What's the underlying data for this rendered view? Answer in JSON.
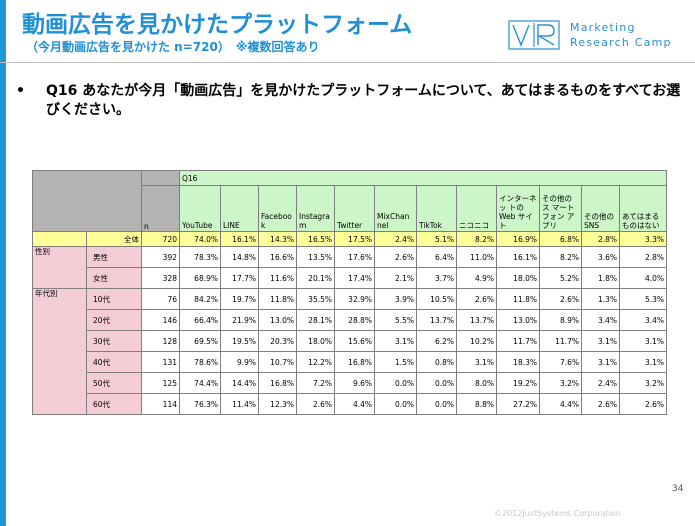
{
  "slide": {
    "title": "動画広告を見かけたプラットフォーム",
    "subtitle": "（今月動画広告を見かけた n=720）　※複数回答あり",
    "logo_text_line1": "Marketing",
    "logo_text_line2": "Research Camp",
    "logo_glyph": "VR",
    "bullet": "•",
    "question": "Q16 あなたが今月「動画広告」を見かけたプラットフォームについて、あてはまるものをすべてお選びください。",
    "page_number": "34",
    "copyright": "©2012JustSystems Corporation"
  },
  "table": {
    "q_label": "Q16",
    "n_label": "n",
    "columns": [
      "YouTube",
      "LINE",
      "Faceboo\nk",
      "Instagra\nm",
      "Twitter",
      "MixChan\nnel",
      "TikTok",
      "ニコニコ",
      "インターネッ\nトのWeb\nサイト",
      "その他のス\nマートフォン\nアプリ",
      "その他の\nSNS",
      "あてはまる\nものはない"
    ],
    "rows": [
      {
        "group": "",
        "label": "全体",
        "n": "720",
        "values": [
          "74.0%",
          "16.1%",
          "14.3%",
          "16.5%",
          "17.5%",
          "2.4%",
          "5.1%",
          "8.2%",
          "16.9%",
          "6.8%",
          "2.8%",
          "3.3%"
        ]
      },
      {
        "group": "性別",
        "label": "男性",
        "n": "392",
        "values": [
          "78.3%",
          "14.8%",
          "16.6%",
          "13.5%",
          "17.6%",
          "2.6%",
          "6.4%",
          "11.0%",
          "16.1%",
          "8.2%",
          "3.6%",
          "2.8%"
        ]
      },
      {
        "group": "",
        "label": "女性",
        "n": "328",
        "values": [
          "68.9%",
          "17.7%",
          "11.6%",
          "20.1%",
          "17.4%",
          "2.1%",
          "3.7%",
          "4.9%",
          "18.0%",
          "5.2%",
          "1.8%",
          "4.0%"
        ]
      },
      {
        "group": "年代別",
        "label": "10代",
        "n": "76",
        "values": [
          "84.2%",
          "19.7%",
          "11.8%",
          "35.5%",
          "32.9%",
          "3.9%",
          "10.5%",
          "2.6%",
          "11.8%",
          "2.6%",
          "1.3%",
          "5.3%"
        ]
      },
      {
        "group": "",
        "label": "20代",
        "n": "146",
        "values": [
          "66.4%",
          "21.9%",
          "13.0%",
          "28.1%",
          "28.8%",
          "5.5%",
          "13.7%",
          "13.7%",
          "13.0%",
          "8.9%",
          "3.4%",
          "3.4%"
        ]
      },
      {
        "group": "",
        "label": "30代",
        "n": "128",
        "values": [
          "69.5%",
          "19.5%",
          "20.3%",
          "18.0%",
          "15.6%",
          "3.1%",
          "6.2%",
          "10.2%",
          "11.7%",
          "11.7%",
          "3.1%",
          "3.1%"
        ]
      },
      {
        "group": "",
        "label": "40代",
        "n": "131",
        "values": [
          "78.6%",
          "9.9%",
          "10.7%",
          "12.2%",
          "16.8%",
          "1.5%",
          "0.8%",
          "3.1%",
          "18.3%",
          "7.6%",
          "3.1%",
          "3.1%"
        ]
      },
      {
        "group": "",
        "label": "50代",
        "n": "125",
        "values": [
          "74.4%",
          "14.4%",
          "16.8%",
          "7.2%",
          "9.6%",
          "0.0%",
          "0.0%",
          "8.0%",
          "19.2%",
          "3.2%",
          "2.4%",
          "3.2%"
        ]
      },
      {
        "group": "",
        "label": "60代",
        "n": "114",
        "values": [
          "76.3%",
          "11.4%",
          "12.3%",
          "2.6%",
          "4.4%",
          "0.0%",
          "0.0%",
          "8.8%",
          "27.2%",
          "4.4%",
          "2.6%",
          "2.6%"
        ]
      }
    ]
  },
  "colors": {
    "accent": "#1f8fd6",
    "header_green": "#ccf5c8",
    "total_yellow": "#ffff99",
    "row_pink": "#f4ccd6",
    "corner_gray": "#b3b3b3"
  }
}
